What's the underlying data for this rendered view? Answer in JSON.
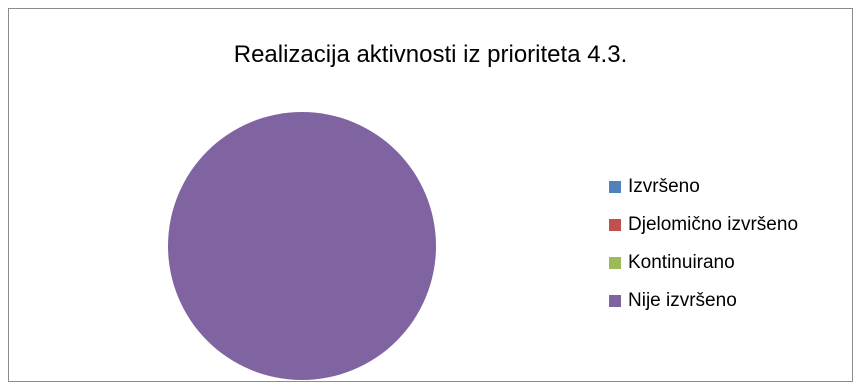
{
  "chart_data": {
    "type": "pie",
    "title": "Realizacija aktivnosti iz prioriteta 4.3.",
    "categories": [
      "Izvršeno",
      "Djelomično izvršeno",
      "Kontinuirano",
      "Nije izvršeno"
    ],
    "values": [
      0,
      0,
      0,
      1
    ],
    "colors": [
      "#4F81BD",
      "#C0504D",
      "#9BBB59",
      "#8064A2"
    ],
    "legend_position": "right"
  }
}
